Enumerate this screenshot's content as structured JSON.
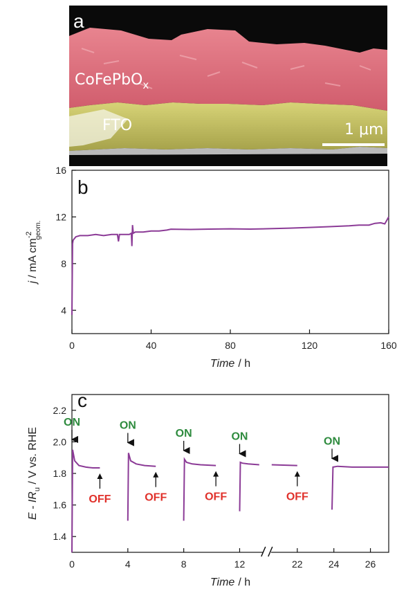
{
  "panel_a": {
    "letter": "a",
    "layer_top": "CoFePbO",
    "layer_top_sub": "x",
    "layer_bottom": "FTO",
    "scale_bar": "1 μm"
  },
  "chart_data": [
    {
      "panel": "b",
      "type": "line",
      "xlim": [
        0,
        160
      ],
      "ylim": [
        2,
        16
      ],
      "xticks": [
        "0",
        "40",
        "80",
        "120",
        "160"
      ],
      "yticks": [
        "4",
        "8",
        "12",
        "16"
      ],
      "xlabel_italic": "Time",
      "xlabel_unit": "/ h",
      "ylabel_italic": "j",
      "ylabel_unit": "/ mA cm",
      "ylabel_sup": "-2",
      "ylabel_sub": "geom.",
      "color": "#8b3a96",
      "series": [
        {
          "x": [
            0,
            0.3,
            0.6,
            1.0,
            2,
            4,
            8,
            12,
            16,
            20,
            23,
            23.5,
            24,
            24.5,
            26,
            29,
            30,
            30.3,
            30.6,
            31,
            32,
            36,
            40,
            44,
            48,
            50,
            60,
            70,
            80,
            90,
            100,
            110,
            120,
            130,
            140,
            145,
            150,
            153,
            156,
            158,
            159,
            160
          ],
          "y": [
            3.6,
            9.7,
            10.0,
            10.1,
            10.3,
            10.4,
            10.4,
            10.5,
            10.4,
            10.5,
            10.5,
            9.9,
            10.5,
            10.5,
            10.5,
            10.5,
            10.6,
            9.5,
            11.3,
            10.6,
            10.7,
            10.7,
            10.8,
            10.8,
            10.9,
            10.9,
            10.9,
            10.95,
            11.0,
            11.0,
            11.05,
            11.1,
            11.15,
            11.2,
            11.25,
            11.3,
            11.3,
            11.45,
            11.5,
            11.4,
            11.7,
            12.0
          ]
        }
      ]
    },
    {
      "panel": "c",
      "type": "line",
      "xlim": [
        0,
        27
      ],
      "ylim": [
        1.3,
        2.3
      ],
      "axis_break_at": 13.6,
      "xticks": [
        "0",
        "4",
        "8",
        "12",
        "22",
        "24",
        "26"
      ],
      "yticks": [
        "1.4",
        "1.6",
        "1.8",
        "2.0",
        "2.2"
      ],
      "xlabel_italic": "Time",
      "xlabel_unit": "/ h",
      "ylabel_italic": "E - IR",
      "ylabel_sub": "u",
      "ylabel_unit": " / V vs. RHE",
      "on_label": "ON",
      "off_label": "OFF",
      "color": "#8b3a96",
      "segments": [
        {
          "x": [
            0,
            0.05,
            0.2,
            0.5,
            1.0,
            1.5,
            2.0
          ],
          "y": [
            1.3,
            1.95,
            1.88,
            1.85,
            1.84,
            1.835,
            1.835
          ]
        },
        {
          "x": [
            4.0,
            4.05,
            4.2,
            4.6,
            5.2,
            6.0
          ],
          "y": [
            1.5,
            1.93,
            1.88,
            1.86,
            1.85,
            1.845
          ]
        },
        {
          "x": [
            8.0,
            8.05,
            8.2,
            8.6,
            9.2,
            10.3
          ],
          "y": [
            1.5,
            1.89,
            1.87,
            1.86,
            1.855,
            1.85
          ]
        },
        {
          "x": [
            12.0,
            12.05,
            12.2,
            12.6,
            13.4
          ],
          "y": [
            1.56,
            1.87,
            1.865,
            1.86,
            1.855
          ]
        },
        {
          "x": [
            20.6,
            22.0
          ],
          "y": [
            1.855,
            1.85
          ]
        },
        {
          "x": [
            23.9,
            23.95,
            24.2,
            25,
            26,
            27
          ],
          "y": [
            1.57,
            1.84,
            1.845,
            1.84,
            1.84,
            1.84
          ]
        }
      ],
      "on_times": [
        0,
        4,
        8,
        12,
        23.9
      ],
      "on_y": [
        1.98,
        1.96,
        1.91,
        1.89,
        1.86
      ],
      "off_times": [
        2.0,
        6.0,
        10.3,
        22.0
      ],
      "off_y": [
        1.8,
        1.81,
        1.815,
        1.815
      ]
    }
  ]
}
